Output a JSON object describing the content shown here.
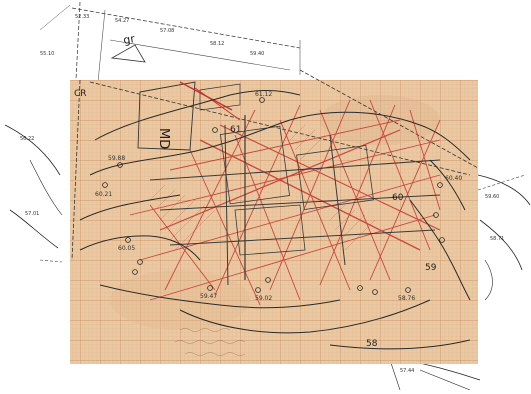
{
  "map": {
    "plan_labels": {
      "corner_top": "gr",
      "corner_left": "CR",
      "building_code": "MD"
    },
    "contour_labels": [
      {
        "value": "61"
      },
      {
        "value": "60"
      },
      {
        "value": "59"
      },
      {
        "value": "58"
      }
    ],
    "survey_points": [
      {
        "id": "p1",
        "label": "60.21"
      },
      {
        "id": "p2",
        "label": "59.88"
      },
      {
        "id": "p3",
        "label": "60.05"
      },
      {
        "id": "p4",
        "label": "59.47"
      },
      {
        "id": "p5",
        "label": "59.02"
      },
      {
        "id": "p6",
        "label": "58.76"
      },
      {
        "id": "p7",
        "label": "60.40"
      },
      {
        "id": "p8",
        "label": "61.12"
      }
    ],
    "colors": {
      "paper": "#e9c9a3",
      "grid_fine": "#d9a87c",
      "grid_major": "#c98a5c",
      "contour": "#2a2a2a",
      "red_overlay": "#c8302c",
      "overlay_paper": "#ffffff"
    }
  }
}
